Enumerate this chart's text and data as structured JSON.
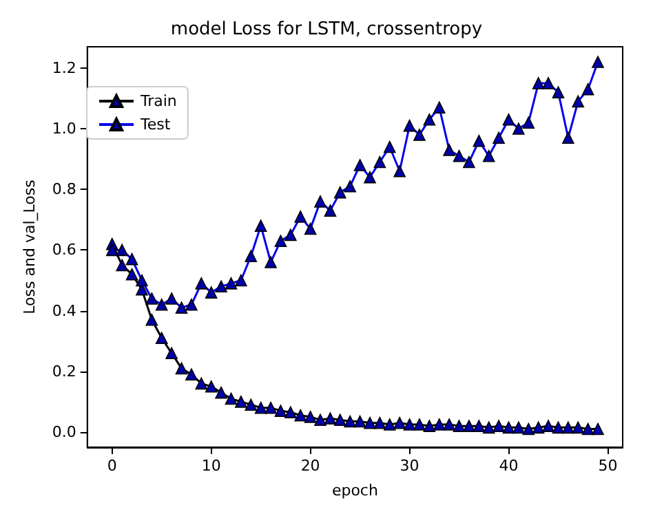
{
  "chart_data": {
    "type": "line",
    "title": "model Loss for LSTM, crossentropy",
    "xlabel": "epoch",
    "ylabel": "Loss and val_Loss",
    "x": [
      0,
      1,
      2,
      3,
      4,
      5,
      6,
      7,
      8,
      9,
      10,
      11,
      12,
      13,
      14,
      15,
      16,
      17,
      18,
      19,
      20,
      21,
      22,
      23,
      24,
      25,
      26,
      27,
      28,
      29,
      30,
      31,
      32,
      33,
      34,
      35,
      36,
      37,
      38,
      39,
      40,
      41,
      42,
      43,
      44,
      45,
      46,
      47,
      48,
      49
    ],
    "series": [
      {
        "name": "Train",
        "color": "#000000",
        "values": [
          0.62,
          0.55,
          0.52,
          0.47,
          0.37,
          0.31,
          0.26,
          0.21,
          0.19,
          0.16,
          0.15,
          0.13,
          0.11,
          0.1,
          0.09,
          0.08,
          0.08,
          0.07,
          0.065,
          0.055,
          0.05,
          0.04,
          0.045,
          0.04,
          0.035,
          0.035,
          0.03,
          0.03,
          0.025,
          0.03,
          0.025,
          0.025,
          0.02,
          0.025,
          0.025,
          0.02,
          0.02,
          0.02,
          0.015,
          0.02,
          0.015,
          0.015,
          0.01,
          0.015,
          0.02,
          0.015,
          0.015,
          0.015,
          0.01,
          0.01
        ]
      },
      {
        "name": "Test",
        "color": "#0000ee",
        "values": [
          0.6,
          0.6,
          0.57,
          0.5,
          0.44,
          0.42,
          0.44,
          0.41,
          0.42,
          0.49,
          0.46,
          0.48,
          0.49,
          0.5,
          0.58,
          0.68,
          0.56,
          0.63,
          0.65,
          0.71,
          0.67,
          0.76,
          0.73,
          0.79,
          0.81,
          0.88,
          0.84,
          0.89,
          0.94,
          0.86,
          1.01,
          0.98,
          1.03,
          1.07,
          0.93,
          0.91,
          0.89,
          0.96,
          0.91,
          0.97,
          1.03,
          1.0,
          1.02,
          1.15,
          1.15,
          1.12,
          0.97,
          1.09,
          1.13,
          1.22
        ]
      }
    ],
    "xlim": [
      -2.5,
      51.5
    ],
    "xticks": [
      0,
      10,
      20,
      30,
      40,
      50
    ],
    "ylim": [
      -0.05,
      1.27
    ],
    "yticks": [
      {
        "value": 0,
        "label": "0.0"
      },
      {
        "value": 0.2,
        "label": "0.2"
      },
      {
        "value": 0.4,
        "label": "0.4"
      },
      {
        "value": 0.6,
        "label": "0.6"
      },
      {
        "value": 0.8,
        "label": "0.8"
      },
      {
        "value": 1.0,
        "label": "1.0"
      },
      {
        "value": 1.2,
        "label": "1.2"
      }
    ],
    "marker": "triangle",
    "legend": "top left",
    "grid": false
  }
}
